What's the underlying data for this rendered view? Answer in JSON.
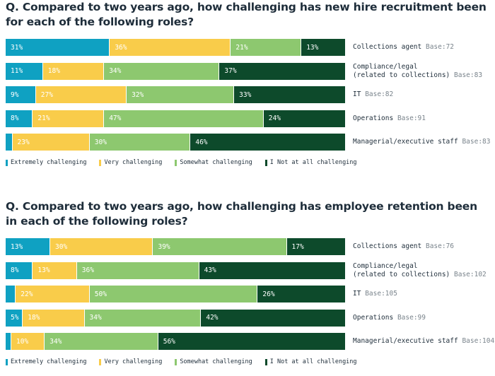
{
  "colors": {
    "extremely": "#0fa1c2",
    "very": "#f9cc4a",
    "somewhat": "#8dc86f",
    "not_at_all": "#0d4a2b"
  },
  "chart_data": [
    {
      "type": "bar",
      "orientation": "horizontal",
      "stacked": true,
      "normalized": "percent",
      "title": "Q. Compared to two years ago, how challenging has new hire recruitment been for each of the following roles?",
      "categories": [
        "Collections agent",
        "Compliance/legal (related to collections)",
        "IT",
        "Operations",
        "Managerial/executive staff"
      ],
      "bases": [
        "Base:72",
        "Base:83",
        "Base:82",
        "Base:91",
        "Base:83"
      ],
      "series": [
        {
          "name": "Extremely challenging",
          "values": [
            31,
            11,
            9,
            8,
            2
          ]
        },
        {
          "name": "Very challenging",
          "values": [
            36,
            18,
            27,
            21,
            23
          ]
        },
        {
          "name": "Somewhat challenging",
          "values": [
            21,
            34,
            32,
            47,
            30
          ]
        },
        {
          "name": "I Not at all challenging",
          "values": [
            13,
            37,
            33,
            24,
            46
          ]
        }
      ],
      "value_labels": [
        [
          "31%",
          "36%",
          "21%",
          "13%"
        ],
        [
          "11%",
          "18%",
          "34%",
          "37%"
        ],
        [
          "9%",
          "27%",
          "32%",
          "33%"
        ],
        [
          "8%",
          "21%",
          "47%",
          "24%"
        ],
        [
          "",
          "23%",
          "30%",
          "46%"
        ]
      ],
      "legend_position": "bottom"
    },
    {
      "type": "bar",
      "orientation": "horizontal",
      "stacked": true,
      "normalized": "percent",
      "title": "Q. Compared to two years ago, how challenging has employee retention been in each of the following roles?",
      "categories": [
        "Collections agent",
        "Compliance/legal (related to collections)",
        "IT",
        "Operations",
        "Managerial/executive staff"
      ],
      "bases": [
        "Base:76",
        "Base:102",
        "Base:105",
        "Base:99",
        "Base:104"
      ],
      "series": [
        {
          "name": "Extremely challenging",
          "values": [
            13,
            8,
            3,
            5,
            1
          ]
        },
        {
          "name": "Very challenging",
          "values": [
            30,
            13,
            22,
            18,
            10
          ]
        },
        {
          "name": "Somewhat challenging",
          "values": [
            39,
            36,
            50,
            34,
            34
          ]
        },
        {
          "name": "I Not at all challenging",
          "values": [
            17,
            43,
            26,
            42,
            56
          ]
        }
      ],
      "value_labels": [
        [
          "13%",
          "30%",
          "39%",
          "17%"
        ],
        [
          "8%",
          "13%",
          "36%",
          "43%"
        ],
        [
          "",
          "22%",
          "50%",
          "26%"
        ],
        [
          "5%",
          "18%",
          "34%",
          "42%"
        ],
        [
          "",
          "10%",
          "34%",
          "56%"
        ]
      ],
      "legend_position": "bottom"
    }
  ]
}
